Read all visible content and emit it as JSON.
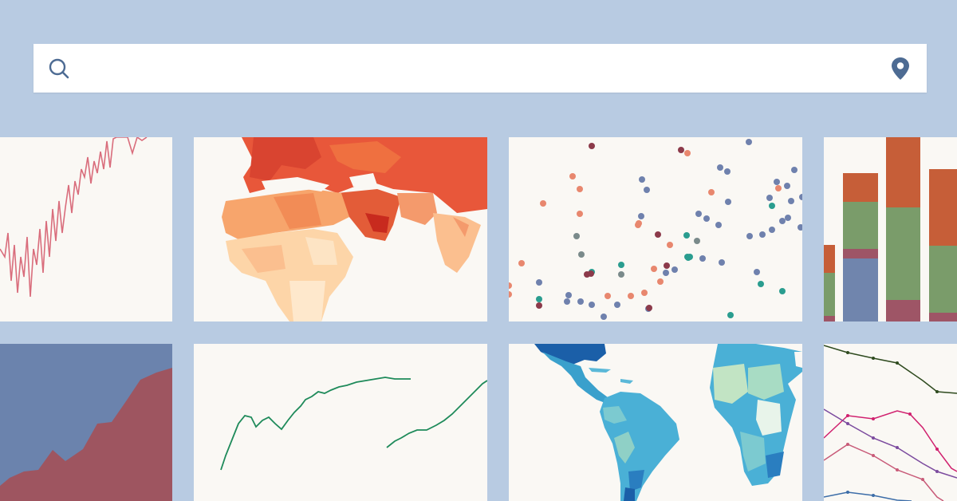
{
  "search": {
    "placeholder": "",
    "value": ""
  },
  "icons": {
    "search": "search-icon",
    "location": "map-pin-icon"
  },
  "colors": {
    "page_background": "#b8cbe2",
    "search_background": "#ffffff",
    "icon": "#4d6b93",
    "tile_background": "#faf8f4"
  },
  "gallery": {
    "tiles": [
      {
        "name": "tile-line-chart-red",
        "kind": "line chart",
        "color": "#d96d7c"
      },
      {
        "name": "tile-choropleth-map-orange",
        "kind": "choropleth map",
        "color": "#e8573a"
      },
      {
        "name": "tile-scatter-plot",
        "kind": "scatter plot",
        "colors": [
          "#6f81ad",
          "#e8876e",
          "#2a9d8f",
          "#a56bb3",
          "#8c3a4a",
          "#7a8a8a"
        ]
      },
      {
        "name": "tile-stacked-bar-chart",
        "kind": "stacked bar chart",
        "colors": [
          "#7085ad",
          "#9e5566",
          "#7a9c6a",
          "#c65e38"
        ]
      },
      {
        "name": "tile-area-chart",
        "kind": "area chart",
        "colors": [
          "#6b83ad",
          "#9e5560"
        ]
      },
      {
        "name": "tile-line-chart-green",
        "kind": "line chart",
        "color": "#1e8a5a"
      },
      {
        "name": "tile-choropleth-map-blue",
        "kind": "choropleth map",
        "color": "#4ab0d6"
      },
      {
        "name": "tile-multi-line-chart",
        "kind": "line chart",
        "colors": [
          "#2e4a1e",
          "#d0206e",
          "#7b4a9e",
          "#c85a78",
          "#3c6da8"
        ]
      }
    ]
  }
}
